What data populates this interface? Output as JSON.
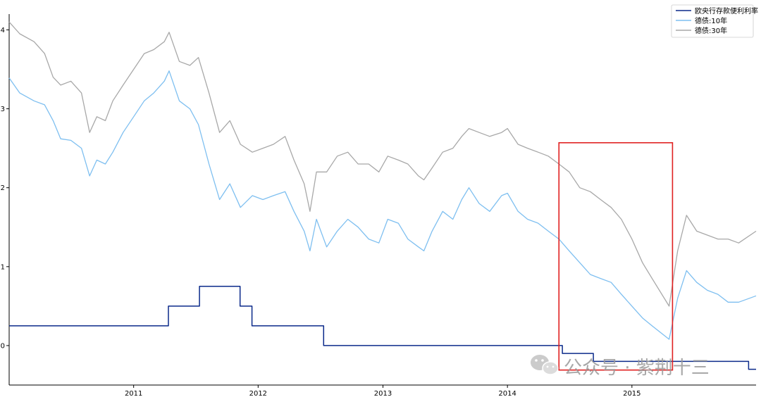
{
  "chart_data": {
    "type": "line",
    "title": "",
    "xlabel": "",
    "ylabel": "",
    "ylim": [
      -0.5,
      4.2
    ],
    "xlim": [
      "2010-01-01",
      "2015-12-31"
    ],
    "yticks": [
      "0",
      "1",
      "2",
      "3",
      "4"
    ],
    "xticks": [
      "2011",
      "2012",
      "2013",
      "2014",
      "2015"
    ],
    "grid": false,
    "legend_position": "top-right",
    "series": [
      {
        "name": "欧央行存款便利利率",
        "color": "#0b2a8a",
        "style": "step",
        "points": [
          [
            "2010-01-01",
            0.25
          ],
          [
            "2011-04-13",
            0.5
          ],
          [
            "2011-07-13",
            0.75
          ],
          [
            "2011-11-09",
            0.5
          ],
          [
            "2011-12-14",
            0.25
          ],
          [
            "2012-07-11",
            0.0
          ],
          [
            "2014-06-11",
            -0.1
          ],
          [
            "2014-09-10",
            -0.2
          ],
          [
            "2015-12-09",
            -0.3
          ],
          [
            "2015-12-31",
            -0.3
          ]
        ]
      },
      {
        "name": "德债:10年",
        "color": "#7ebff0",
        "style": "line",
        "points": [
          [
            "2010-01-01",
            3.39
          ],
          [
            "2010-02-01",
            3.2
          ],
          [
            "2010-03-15",
            3.1
          ],
          [
            "2010-04-15",
            3.05
          ],
          [
            "2010-05-10",
            2.85
          ],
          [
            "2010-06-01",
            2.62
          ],
          [
            "2010-07-01",
            2.6
          ],
          [
            "2010-08-01",
            2.5
          ],
          [
            "2010-08-25",
            2.15
          ],
          [
            "2010-09-15",
            2.35
          ],
          [
            "2010-10-10",
            2.3
          ],
          [
            "2010-11-01",
            2.45
          ],
          [
            "2010-12-01",
            2.7
          ],
          [
            "2011-01-01",
            2.9
          ],
          [
            "2011-02-01",
            3.1
          ],
          [
            "2011-03-01",
            3.2
          ],
          [
            "2011-04-01",
            3.35
          ],
          [
            "2011-04-15",
            3.48
          ],
          [
            "2011-05-15",
            3.1
          ],
          [
            "2011-06-15",
            3.0
          ],
          [
            "2011-07-10",
            2.8
          ],
          [
            "2011-08-10",
            2.3
          ],
          [
            "2011-09-10",
            1.85
          ],
          [
            "2011-10-10",
            2.05
          ],
          [
            "2011-11-10",
            1.75
          ],
          [
            "2011-12-15",
            1.9
          ],
          [
            "2012-01-15",
            1.85
          ],
          [
            "2012-02-15",
            1.9
          ],
          [
            "2012-03-20",
            1.95
          ],
          [
            "2012-04-15",
            1.7
          ],
          [
            "2012-05-15",
            1.45
          ],
          [
            "2012-06-01",
            1.2
          ],
          [
            "2012-06-20",
            1.6
          ],
          [
            "2012-07-20",
            1.25
          ],
          [
            "2012-08-20",
            1.45
          ],
          [
            "2012-09-20",
            1.6
          ],
          [
            "2012-10-20",
            1.5
          ],
          [
            "2012-11-20",
            1.35
          ],
          [
            "2012-12-20",
            1.3
          ],
          [
            "2013-01-15",
            1.6
          ],
          [
            "2013-02-15",
            1.55
          ],
          [
            "2013-03-15",
            1.35
          ],
          [
            "2013-04-15",
            1.25
          ],
          [
            "2013-05-01",
            1.2
          ],
          [
            "2013-05-25",
            1.45
          ],
          [
            "2013-06-25",
            1.7
          ],
          [
            "2013-07-25",
            1.6
          ],
          [
            "2013-08-20",
            1.85
          ],
          [
            "2013-09-10",
            2.0
          ],
          [
            "2013-10-10",
            1.8
          ],
          [
            "2013-11-10",
            1.7
          ],
          [
            "2013-12-15",
            1.9
          ],
          [
            "2014-01-01",
            1.93
          ],
          [
            "2014-02-01",
            1.7
          ],
          [
            "2014-03-01",
            1.6
          ],
          [
            "2014-04-01",
            1.55
          ],
          [
            "2014-05-01",
            1.45
          ],
          [
            "2014-06-01",
            1.35
          ],
          [
            "2014-07-01",
            1.2
          ],
          [
            "2014-08-01",
            1.05
          ],
          [
            "2014-09-01",
            0.9
          ],
          [
            "2014-10-01",
            0.85
          ],
          [
            "2014-11-01",
            0.8
          ],
          [
            "2014-12-01",
            0.65
          ],
          [
            "2015-01-01",
            0.5
          ],
          [
            "2015-02-01",
            0.35
          ],
          [
            "2015-03-01",
            0.25
          ],
          [
            "2015-04-20",
            0.08
          ],
          [
            "2015-05-15",
            0.6
          ],
          [
            "2015-06-10",
            0.95
          ],
          [
            "2015-07-10",
            0.8
          ],
          [
            "2015-08-10",
            0.7
          ],
          [
            "2015-09-10",
            0.65
          ],
          [
            "2015-10-10",
            0.55
          ],
          [
            "2015-11-10",
            0.55
          ],
          [
            "2015-12-31",
            0.63
          ]
        ]
      },
      {
        "name": "德债:30年",
        "color": "#a8a8a8",
        "style": "line",
        "points": [
          [
            "2010-01-01",
            4.1
          ],
          [
            "2010-02-01",
            3.95
          ],
          [
            "2010-03-15",
            3.85
          ],
          [
            "2010-04-15",
            3.7
          ],
          [
            "2010-05-10",
            3.4
          ],
          [
            "2010-06-01",
            3.3
          ],
          [
            "2010-07-01",
            3.35
          ],
          [
            "2010-08-01",
            3.2
          ],
          [
            "2010-08-25",
            2.7
          ],
          [
            "2010-09-15",
            2.9
          ],
          [
            "2010-10-10",
            2.85
          ],
          [
            "2010-11-01",
            3.1
          ],
          [
            "2010-12-01",
            3.3
          ],
          [
            "2011-01-01",
            3.5
          ],
          [
            "2011-02-01",
            3.7
          ],
          [
            "2011-03-01",
            3.75
          ],
          [
            "2011-04-01",
            3.85
          ],
          [
            "2011-04-15",
            3.97
          ],
          [
            "2011-05-15",
            3.6
          ],
          [
            "2011-06-15",
            3.55
          ],
          [
            "2011-07-10",
            3.65
          ],
          [
            "2011-08-10",
            3.2
          ],
          [
            "2011-09-10",
            2.7
          ],
          [
            "2011-10-10",
            2.85
          ],
          [
            "2011-11-10",
            2.55
          ],
          [
            "2011-12-15",
            2.45
          ],
          [
            "2012-01-15",
            2.5
          ],
          [
            "2012-02-15",
            2.55
          ],
          [
            "2012-03-20",
            2.65
          ],
          [
            "2012-04-15",
            2.35
          ],
          [
            "2012-05-15",
            2.05
          ],
          [
            "2012-06-01",
            1.7
          ],
          [
            "2012-06-20",
            2.2
          ],
          [
            "2012-07-20",
            2.2
          ],
          [
            "2012-08-20",
            2.4
          ],
          [
            "2012-09-20",
            2.45
          ],
          [
            "2012-10-20",
            2.3
          ],
          [
            "2012-11-20",
            2.3
          ],
          [
            "2012-12-20",
            2.2
          ],
          [
            "2013-01-15",
            2.4
          ],
          [
            "2013-02-15",
            2.35
          ],
          [
            "2013-03-15",
            2.3
          ],
          [
            "2013-04-15",
            2.15
          ],
          [
            "2013-05-01",
            2.1
          ],
          [
            "2013-05-25",
            2.25
          ],
          [
            "2013-06-25",
            2.45
          ],
          [
            "2013-07-25",
            2.5
          ],
          [
            "2013-08-20",
            2.65
          ],
          [
            "2013-09-10",
            2.75
          ],
          [
            "2013-10-10",
            2.7
          ],
          [
            "2013-11-10",
            2.65
          ],
          [
            "2013-12-15",
            2.7
          ],
          [
            "2014-01-01",
            2.75
          ],
          [
            "2014-02-01",
            2.55
          ],
          [
            "2014-03-01",
            2.5
          ],
          [
            "2014-04-01",
            2.45
          ],
          [
            "2014-05-01",
            2.4
          ],
          [
            "2014-06-01",
            2.3
          ],
          [
            "2014-07-01",
            2.2
          ],
          [
            "2014-08-01",
            2.0
          ],
          [
            "2014-09-01",
            1.95
          ],
          [
            "2014-10-01",
            1.85
          ],
          [
            "2014-11-01",
            1.75
          ],
          [
            "2014-12-01",
            1.6
          ],
          [
            "2015-01-01",
            1.35
          ],
          [
            "2015-02-01",
            1.05
          ],
          [
            "2015-03-01",
            0.85
          ],
          [
            "2015-04-20",
            0.5
          ],
          [
            "2015-05-15",
            1.2
          ],
          [
            "2015-06-10",
            1.65
          ],
          [
            "2015-07-10",
            1.45
          ],
          [
            "2015-08-10",
            1.4
          ],
          [
            "2015-09-10",
            1.35
          ],
          [
            "2015-10-10",
            1.35
          ],
          [
            "2015-11-10",
            1.3
          ],
          [
            "2015-12-31",
            1.45
          ]
        ]
      }
    ],
    "annotations": [
      {
        "type": "rectangle",
        "color": "#e02020",
        "x_range": [
          "2014-06-01",
          "2015-04-30"
        ],
        "y_range": [
          -0.31,
          2.57
        ]
      }
    ]
  },
  "watermark": {
    "text": "公众号 · 紫荆十三",
    "icon": "wechat-icon"
  }
}
